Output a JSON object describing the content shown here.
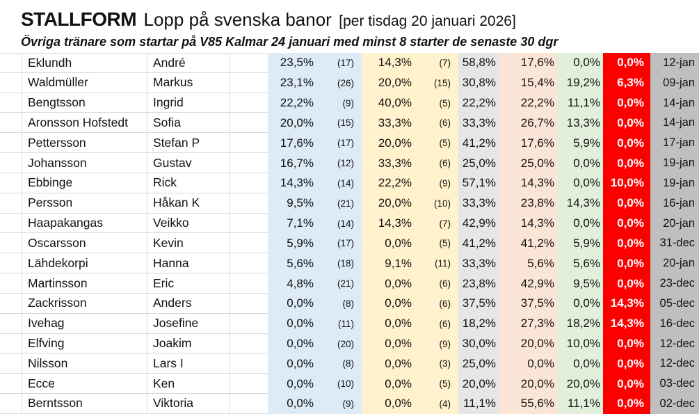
{
  "header": {
    "title_brand": "STALLFORM",
    "title_text": "Lopp på svenska banor",
    "title_note": "[per tisdag 20 januari 2026]",
    "subtitle": "Övriga tränare som startar på V85 Kalmar 24 januari med minst 8 starter de senaste 30 dgr"
  },
  "colors": {
    "col-blue": "#DDEBF7",
    "col-yellow": "#FFF2CC",
    "col-gray": "#E7E6E6",
    "col-pink": "#FBE5D6",
    "col-green": "#E2EFDA",
    "col-red": "#FC0000",
    "col-date": "#BFBFBF",
    "gridline": "#D9D9D9",
    "text": "#111111",
    "red-text": "#FFFFFF"
  },
  "table": {
    "rows": [
      {
        "last": "Eklundh",
        "first": "André",
        "p1": "23,5%",
        "n1": "(17)",
        "p2": "14,3%",
        "n2": "(7)",
        "p3": "58,8%",
        "p4": "17,6%",
        "p5": "0,0%",
        "p6": "0,0%",
        "date": "12-jan"
      },
      {
        "last": "Waldmüller",
        "first": "Markus",
        "p1": "23,1%",
        "n1": "(26)",
        "p2": "20,0%",
        "n2": "(15)",
        "p3": "30,8%",
        "p4": "15,4%",
        "p5": "19,2%",
        "p6": "6,3%",
        "date": "09-jan"
      },
      {
        "last": "Bengtsson",
        "first": "Ingrid",
        "p1": "22,2%",
        "n1": "(9)",
        "p2": "40,0%",
        "n2": "(5)",
        "p3": "22,2%",
        "p4": "22,2%",
        "p5": "11,1%",
        "p6": "0,0%",
        "date": "14-jan"
      },
      {
        "last": "Aronsson Hofstedt",
        "first": "Sofia",
        "p1": "20,0%",
        "n1": "(15)",
        "p2": "33,3%",
        "n2": "(6)",
        "p3": "33,3%",
        "p4": "26,7%",
        "p5": "13,3%",
        "p6": "0,0%",
        "date": "14-jan"
      },
      {
        "last": "Pettersson",
        "first": "Stefan P",
        "p1": "17,6%",
        "n1": "(17)",
        "p2": "20,0%",
        "n2": "(5)",
        "p3": "41,2%",
        "p4": "17,6%",
        "p5": "5,9%",
        "p6": "0,0%",
        "date": "17-jan"
      },
      {
        "last": "Johansson",
        "first": "Gustav",
        "p1": "16,7%",
        "n1": "(12)",
        "p2": "33,3%",
        "n2": "(6)",
        "p3": "25,0%",
        "p4": "25,0%",
        "p5": "0,0%",
        "p6": "0,0%",
        "date": "19-jan"
      },
      {
        "last": "Ebbinge",
        "first": "Rick",
        "p1": "14,3%",
        "n1": "(14)",
        "p2": "22,2%",
        "n2": "(9)",
        "p3": "57,1%",
        "p4": "14,3%",
        "p5": "0,0%",
        "p6": "10,0%",
        "date": "19-jan"
      },
      {
        "last": "Persson",
        "first": "Håkan K",
        "p1": "9,5%",
        "n1": "(21)",
        "p2": "20,0%",
        "n2": "(10)",
        "p3": "33,3%",
        "p4": "23,8%",
        "p5": "14,3%",
        "p6": "0,0%",
        "date": "16-jan"
      },
      {
        "last": "Haapakangas",
        "first": "Veikko",
        "p1": "7,1%",
        "n1": "(14)",
        "p2": "14,3%",
        "n2": "(7)",
        "p3": "42,9%",
        "p4": "14,3%",
        "p5": "0,0%",
        "p6": "0,0%",
        "date": "20-jan"
      },
      {
        "last": "Oscarsson",
        "first": "Kevin",
        "p1": "5,9%",
        "n1": "(17)",
        "p2": "0,0%",
        "n2": "(5)",
        "p3": "41,2%",
        "p4": "41,2%",
        "p5": "5,9%",
        "p6": "0,0%",
        "date": "31-dec"
      },
      {
        "last": "Lähdekorpi",
        "first": "Hanna",
        "p1": "5,6%",
        "n1": "(18)",
        "p2": "9,1%",
        "n2": "(11)",
        "p3": "33,3%",
        "p4": "5,6%",
        "p5": "5,6%",
        "p6": "0,0%",
        "date": "20-jan"
      },
      {
        "last": "Martinsson",
        "first": "Eric",
        "p1": "4,8%",
        "n1": "(21)",
        "p2": "0,0%",
        "n2": "(6)",
        "p3": "23,8%",
        "p4": "42,9%",
        "p5": "9,5%",
        "p6": "0,0%",
        "date": "23-dec"
      },
      {
        "last": "Zackrisson",
        "first": "Anders",
        "p1": "0,0%",
        "n1": "(8)",
        "p2": "0,0%",
        "n2": "(6)",
        "p3": "37,5%",
        "p4": "37,5%",
        "p5": "0,0%",
        "p6": "14,3%",
        "date": "05-dec"
      },
      {
        "last": "Ivehag",
        "first": "Josefine",
        "p1": "0,0%",
        "n1": "(11)",
        "p2": "0,0%",
        "n2": "(6)",
        "p3": "18,2%",
        "p4": "27,3%",
        "p5": "18,2%",
        "p6": "14,3%",
        "date": "16-dec"
      },
      {
        "last": "Elfving",
        "first": "Joakim",
        "p1": "0,0%",
        "n1": "(20)",
        "p2": "0,0%",
        "n2": "(9)",
        "p3": "30,0%",
        "p4": "20,0%",
        "p5": "10,0%",
        "p6": "0,0%",
        "date": "12-dec"
      },
      {
        "last": "Nilsson",
        "first": "Lars I",
        "p1": "0,0%",
        "n1": "(8)",
        "p2": "0,0%",
        "n2": "(3)",
        "p3": "25,0%",
        "p4": "0,0%",
        "p5": "0,0%",
        "p6": "0,0%",
        "date": "12-dec"
      },
      {
        "last": "Ecce",
        "first": "Ken",
        "p1": "0,0%",
        "n1": "(10)",
        "p2": "0,0%",
        "n2": "(5)",
        "p3": "20,0%",
        "p4": "20,0%",
        "p5": "20,0%",
        "p6": "0,0%",
        "date": "03-dec"
      },
      {
        "last": "Berntsson",
        "first": "Viktoria",
        "p1": "0,0%",
        "n1": "(9)",
        "p2": "0,0%",
        "n2": "(4)",
        "p3": "11,1%",
        "p4": "55,6%",
        "p5": "11,1%",
        "p6": "0,0%",
        "date": "02-dec"
      }
    ]
  }
}
